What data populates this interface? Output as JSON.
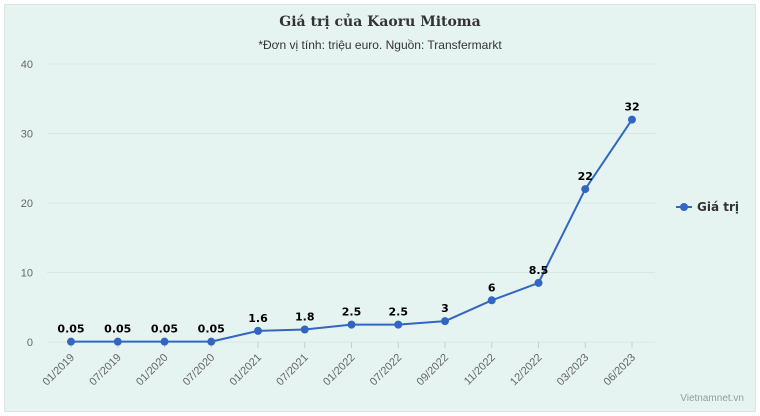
{
  "chart_data": {
    "type": "line",
    "title": "Giá trị của Kaoru Mitoma",
    "subtitle": "*Đơn vị tính: triệu euro. Nguồn: Transfermarkt",
    "categories": [
      "01/2019",
      "07/2019",
      "01/2020",
      "07/2020",
      "01/2021",
      "07/2021",
      "01/2022",
      "07/2022",
      "09/2022",
      "11/2022",
      "12/2022",
      "03/2023",
      "06/2023"
    ],
    "series": [
      {
        "name": "Giá trị",
        "values": [
          0.05,
          0.05,
          0.05,
          0.05,
          1.6,
          1.8,
          2.5,
          2.5,
          3,
          6,
          8.5,
          22,
          32
        ],
        "labels": [
          "0.05",
          "0.05",
          "0.05",
          "0.05",
          "1.6",
          "1.8",
          "2.5",
          "2.5",
          "3",
          "6",
          "8.5",
          "22",
          "32"
        ],
        "color": "#3366c2"
      }
    ],
    "yticks": [
      "0",
      "10",
      "20",
      "30",
      "40"
    ],
    "ylim": [
      0,
      40
    ],
    "grid": true,
    "legend": "right",
    "xlabel": "",
    "ylabel": ""
  },
  "credit": "Vietnamnet.vn",
  "colors": {
    "background": "#e6f4f1",
    "grid": "#d7e7e3",
    "line": "#3366c2"
  }
}
